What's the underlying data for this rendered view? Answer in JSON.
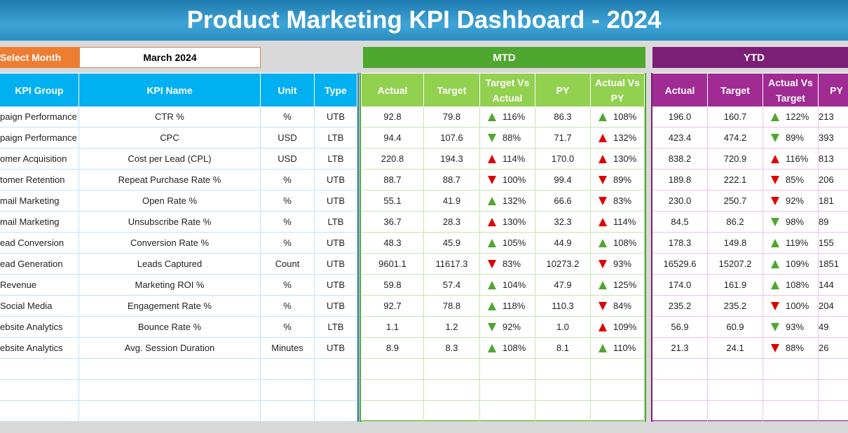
{
  "header": {
    "title": "Product Marketing KPI Dashboard - 2024"
  },
  "controls": {
    "select_label": "Select Month",
    "month": "March 2024"
  },
  "sections": {
    "mtd": "MTD",
    "ytd": "YTD"
  },
  "table": {
    "columns": [
      "KPI Group",
      "KPI Name",
      "Unit",
      "Type",
      "Actual",
      "Target",
      "Target Vs Actual",
      "PY",
      "Actual Vs PY",
      "Actual",
      "Target",
      "Actual Vs Target",
      "PY"
    ],
    "rows": [
      [
        "paign Performance",
        "CTR %",
        "%",
        "UTB",
        "92.8",
        "79.8",
        {
          "text": "116%",
          "icon": "up-green"
        },
        "86.3",
        {
          "text": "108%",
          "icon": "up-green"
        },
        "196.0",
        "160.7",
        {
          "text": "122%",
          "icon": "up-green"
        },
        "213"
      ],
      [
        "paign Performance",
        "CPC",
        "USD",
        "LTB",
        "94.4",
        "107.6",
        {
          "text": "88%",
          "icon": "down-green"
        },
        "71.7",
        {
          "text": "132%",
          "icon": "up-red"
        },
        "423.4",
        "474.2",
        {
          "text": "89%",
          "icon": "down-green"
        },
        "393"
      ],
      [
        "omer Acquisition",
        "Cost per Lead (CPL)",
        "USD",
        "LTB",
        "220.8",
        "194.3",
        {
          "text": "114%",
          "icon": "up-red"
        },
        "170.0",
        {
          "text": "130%",
          "icon": "up-red"
        },
        "838.2",
        "720.9",
        {
          "text": "116%",
          "icon": "up-red"
        },
        "813"
      ],
      [
        "tomer Retention",
        "Repeat Purchase Rate %",
        "%",
        "UTB",
        "88.7",
        "88.7",
        {
          "text": "100%",
          "icon": "down-red"
        },
        "99.4",
        {
          "text": "89%",
          "icon": "down-red"
        },
        "189.8",
        "222.1",
        {
          "text": "85%",
          "icon": "down-red"
        },
        "206"
      ],
      [
        "mail Marketing",
        "Open Rate %",
        "%",
        "UTB",
        "55.1",
        "41.9",
        {
          "text": "132%",
          "icon": "up-green"
        },
        "66.6",
        {
          "text": "83%",
          "icon": "down-red"
        },
        "230.0",
        "250.7",
        {
          "text": "92%",
          "icon": "down-red"
        },
        "181"
      ],
      [
        "mail Marketing",
        "Unsubscribe Rate %",
        "%",
        "LTB",
        "36.7",
        "28.3",
        {
          "text": "130%",
          "icon": "up-red"
        },
        "32.3",
        {
          "text": "114%",
          "icon": "up-red"
        },
        "84.5",
        "86.2",
        {
          "text": "98%",
          "icon": "down-green"
        },
        "89"
      ],
      [
        "ead Conversion",
        "Conversion Rate %",
        "%",
        "UTB",
        "48.3",
        "45.9",
        {
          "text": "105%",
          "icon": "up-green"
        },
        "44.9",
        {
          "text": "108%",
          "icon": "up-green"
        },
        "178.3",
        "149.8",
        {
          "text": "119%",
          "icon": "up-green"
        },
        "155"
      ],
      [
        "ead Generation",
        "Leads Captured",
        "Count",
        "UTB",
        "9601.1",
        "11617.3",
        {
          "text": "83%",
          "icon": "down-red"
        },
        "10273.2",
        {
          "text": "93%",
          "icon": "down-red"
        },
        "16529.6",
        "15207.2",
        {
          "text": "109%",
          "icon": "up-green"
        },
        "1851"
      ],
      [
        "Revenue",
        "Marketing ROI %",
        "%",
        "UTB",
        "59.8",
        "57.4",
        {
          "text": "104%",
          "icon": "up-green"
        },
        "47.9",
        {
          "text": "125%",
          "icon": "up-green"
        },
        "174.0",
        "161.9",
        {
          "text": "108%",
          "icon": "up-green"
        },
        "144"
      ],
      [
        "Social Media",
        "Engagement Rate %",
        "%",
        "UTB",
        "92.7",
        "78.8",
        {
          "text": "118%",
          "icon": "up-green"
        },
        "110.3",
        {
          "text": "84%",
          "icon": "down-red"
        },
        "235.2",
        "235.2",
        {
          "text": "100%",
          "icon": "down-red"
        },
        "204"
      ],
      [
        "ebsite Analytics",
        "Bounce Rate %",
        "%",
        "LTB",
        "1.1",
        "1.2",
        {
          "text": "92%",
          "icon": "down-green"
        },
        "1.0",
        {
          "text": "109%",
          "icon": "up-red"
        },
        "56.9",
        "60.9",
        {
          "text": "93%",
          "icon": "down-green"
        },
        "49"
      ],
      [
        "ebsite Analytics",
        "Avg. Session Duration",
        "Minutes",
        "UTB",
        "8.9",
        "8.3",
        {
          "text": "108%",
          "icon": "up-green"
        },
        "8.1",
        {
          "text": "110%",
          "icon": "up-green"
        },
        "21.3",
        "24.1",
        {
          "text": "88%",
          "icon": "down-red"
        },
        "26"
      ]
    ]
  }
}
